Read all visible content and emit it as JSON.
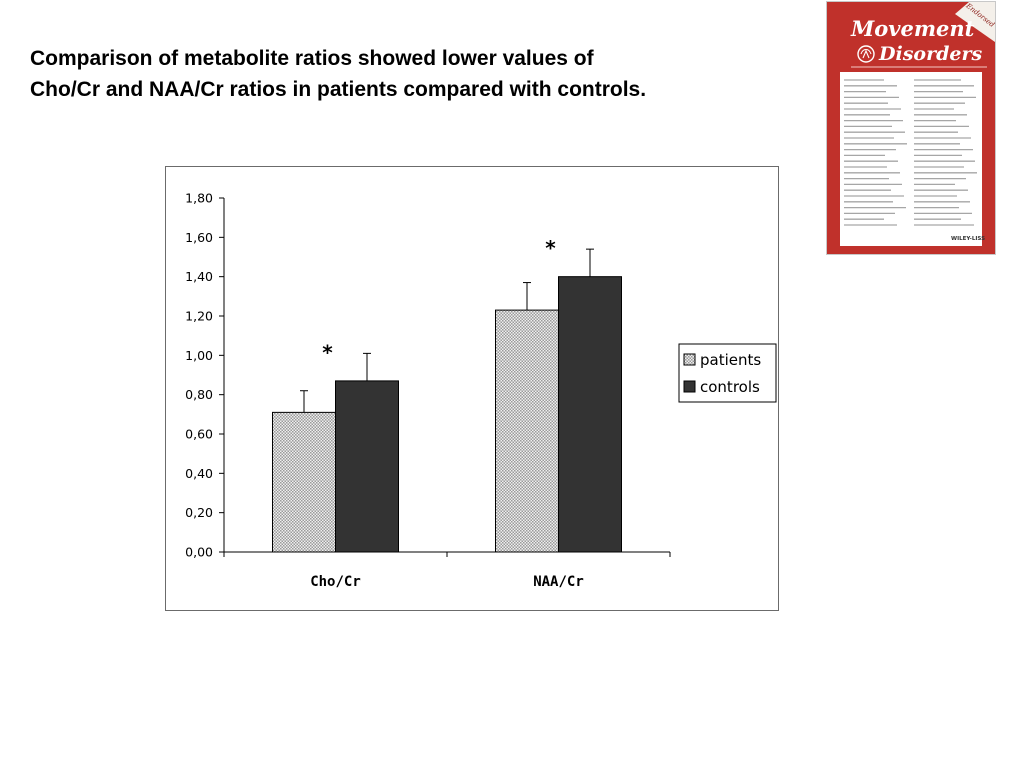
{
  "slide": {
    "title_line1": "Comparison of metabolite ratios showed  lower values of",
    "title_line2": "Cho/Cr and NAA/Cr  ratios in patients compared with controls."
  },
  "cover": {
    "title_line1": "Movement",
    "title_line2": "Disorders",
    "banner": "Endorsed",
    "publisher": "WILEY-LISS",
    "frame_color": "#c0312b"
  },
  "chart_data": {
    "type": "bar",
    "categories": [
      "Cho/Cr",
      "NAA/Cr"
    ],
    "series": [
      {
        "name": "patients",
        "values": [
          0.71,
          1.23
        ],
        "error": [
          0.11,
          0.14
        ],
        "color": "#b4b4b4",
        "pattern": "fine-grid"
      },
      {
        "name": "controls",
        "values": [
          0.87,
          1.4
        ],
        "error": [
          0.14,
          0.14
        ],
        "color": "#333333"
      }
    ],
    "ylim": [
      0,
      1.8
    ],
    "yticks": [
      "0,00",
      "0,20",
      "0,40",
      "0,60",
      "0,80",
      "1,00",
      "1,20",
      "1,40",
      "1,60",
      "1,80"
    ],
    "annotations": [
      "*",
      "*"
    ],
    "legend_position": "right",
    "grid": false,
    "title": "",
    "xlabel": "",
    "ylabel": ""
  }
}
